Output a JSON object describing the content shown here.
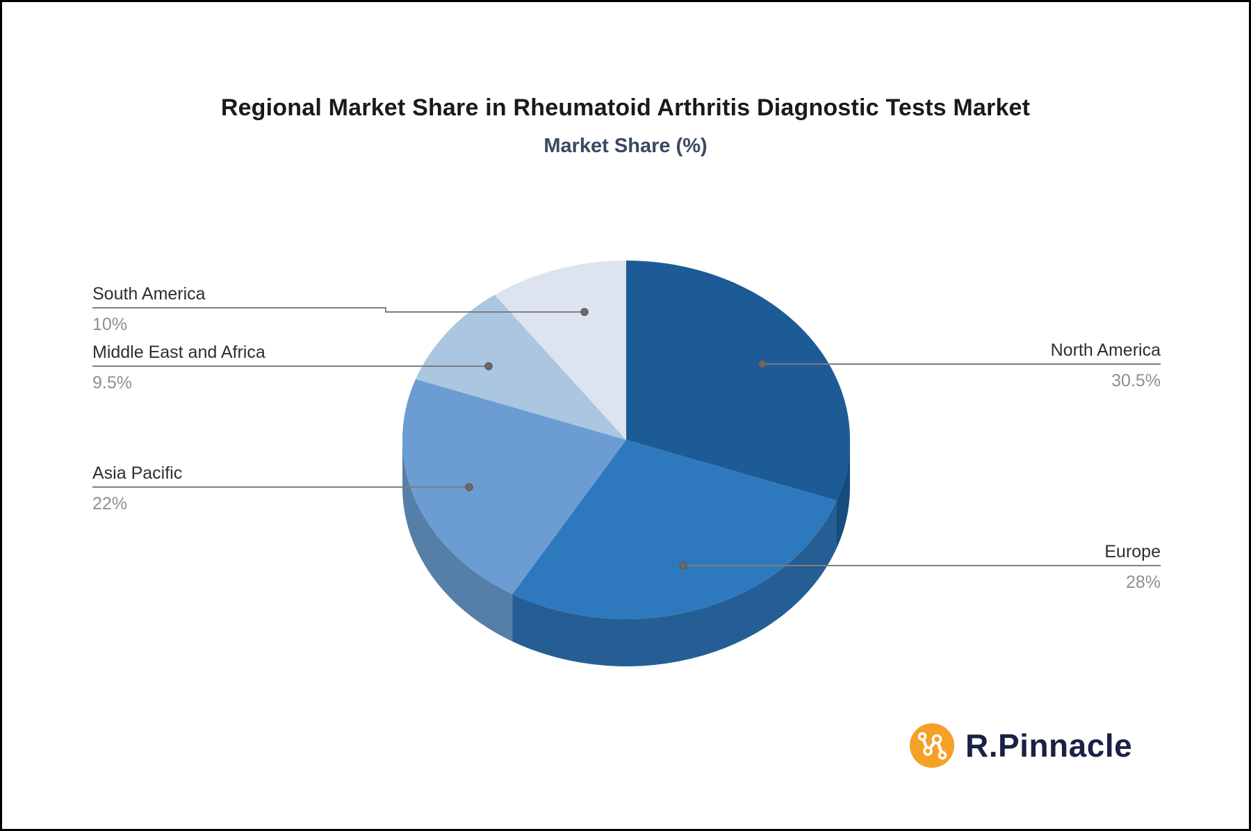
{
  "title": "Regional Market Share in Rheumatoid Arthritis Diagnostic Tests Market",
  "subtitle": "Market Share (%)",
  "chart_data": {
    "type": "pie",
    "style": "3d",
    "title": "Regional Market Share in Rheumatoid Arthritis Diagnostic Tests Market",
    "subtitle": "Market Share (%)",
    "unit": "%",
    "start_angle_deg": 0,
    "direction": "clockwise",
    "legend_position": "callout-labels",
    "series": [
      {
        "label": "North America",
        "value": 30.5,
        "display": "30.5%",
        "color": "#1D5B96",
        "wall_color": "#174C7E"
      },
      {
        "label": "Europe",
        "value": 28,
        "display": "28%",
        "color": "#2E79BD",
        "wall_color": "#245E94"
      },
      {
        "label": "Asia Pacific",
        "value": 22,
        "display": "22%",
        "color": "#6C9DD2",
        "wall_color": "#567FA7"
      },
      {
        "label": "Middle East and Africa",
        "value": 9.5,
        "display": "9.5%",
        "color": "#ABC6E0",
        "wall_color": "#8FA9C4"
      },
      {
        "label": "South America",
        "value": 10,
        "display": "10%",
        "color": "#DEE4EF",
        "wall_color": "#BCC5D4"
      }
    ]
  },
  "leader": {
    "line_color": "#7D7D7D",
    "dot_color": "#6A6A6A"
  },
  "labels": {
    "name_color": "#2E2E2E",
    "value_color": "#8B9096"
  },
  "logo": {
    "text": "R.Pinnacle",
    "icon": "network-nodes-icon",
    "icon_bg_color": "#F5A027",
    "icon_glyph_color": "#FFFFFF",
    "text_color": "#1B2145"
  }
}
